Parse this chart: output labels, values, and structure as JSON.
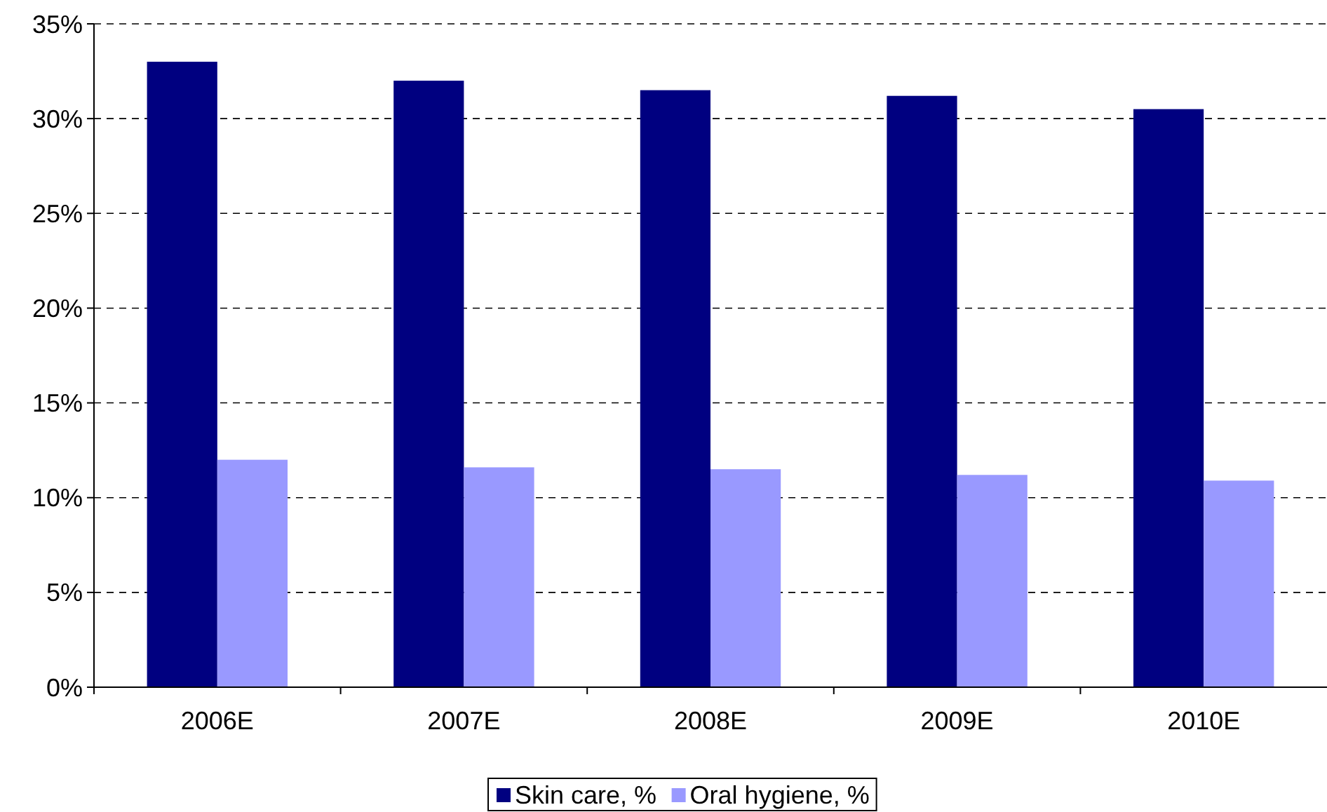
{
  "chart_data": {
    "type": "bar",
    "categories": [
      "2006E",
      "2007E",
      "2008E",
      "2009E",
      "2010E"
    ],
    "series": [
      {
        "name": "Skin care, %",
        "color": "#000080",
        "values": [
          33.0,
          32.0,
          31.5,
          31.2,
          30.5
        ]
      },
      {
        "name": "Oral hygiene, %",
        "color": "#9999ff",
        "values": [
          12.0,
          11.6,
          11.5,
          11.2,
          10.9
        ]
      }
    ],
    "ylim": [
      0,
      35
    ],
    "yticks": [
      {
        "value": 0,
        "label": "0%"
      },
      {
        "value": 5,
        "label": "5%"
      },
      {
        "value": 10,
        "label": "10%"
      },
      {
        "value": 15,
        "label": "15%"
      },
      {
        "value": 20,
        "label": "20%"
      },
      {
        "value": 25,
        "label": "25%"
      },
      {
        "value": 30,
        "label": "30%"
      },
      {
        "value": 35,
        "label": "35%"
      }
    ],
    "grid": "y",
    "legend": "bottom"
  }
}
